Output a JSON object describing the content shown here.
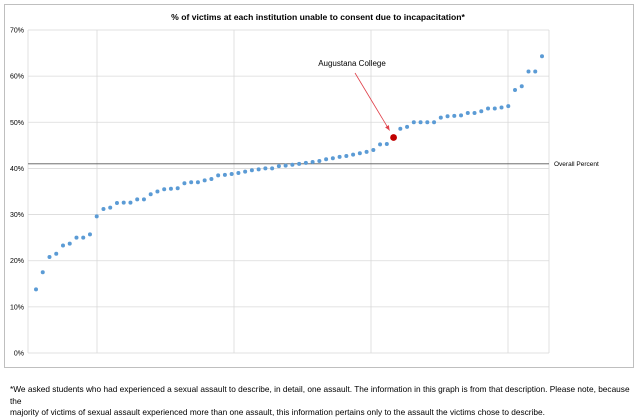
{
  "chart_data": {
    "type": "scatter",
    "title": "% of victims at each institution unable to consent due to incapacitation*",
    "ylim": [
      0,
      70
    ],
    "yticks": [
      "0%",
      "10%",
      "20%",
      "30%",
      "40%",
      "50%",
      "60%",
      "70%"
    ],
    "grid": true,
    "series": [
      {
        "values": [
          13.8,
          17.5,
          20.8,
          21.5,
          23.3,
          23.7,
          25.0,
          25.0,
          25.7,
          29.6,
          31.2,
          31.5,
          32.5,
          32.6,
          32.6,
          33.3,
          33.3,
          34.4,
          35.0,
          35.5,
          35.6,
          35.7,
          36.8,
          37.0,
          37.0,
          37.4,
          37.7,
          38.5,
          38.6,
          38.8,
          39.0,
          39.3,
          39.6,
          39.8,
          40.0,
          40.0,
          40.5,
          40.6,
          40.8,
          41.0,
          41.2,
          41.4,
          41.6,
          42.0,
          42.2,
          42.5,
          42.7,
          43.0,
          43.3,
          43.6,
          44.0,
          45.2,
          45.3,
          48.6,
          49.0,
          50.0,
          50.0,
          50.0,
          50.0,
          51.0,
          51.3,
          51.4,
          51.5,
          52.0,
          52.0,
          52.4,
          53.0,
          53.0,
          53.2,
          53.5,
          57.0,
          57.8,
          61.0,
          61.0,
          64.3
        ]
      }
    ],
    "highlight": {
      "label": "Augustana College",
      "value": 46.7,
      "position_after_index": 52,
      "color": "#c00000"
    },
    "reference_line": {
      "label": "Overall Percent",
      "value": 41
    },
    "point_color": "#5b9bd5"
  },
  "footnote": {
    "line1": "*We asked students who had experienced a sexual assault to describe, in detail, one assault. The information in this graph is from that description. Please note, because the",
    "line2": "majority of victims of sexual assault experienced more than one assault, this information pertains only to the assault the victims chose to describe."
  }
}
